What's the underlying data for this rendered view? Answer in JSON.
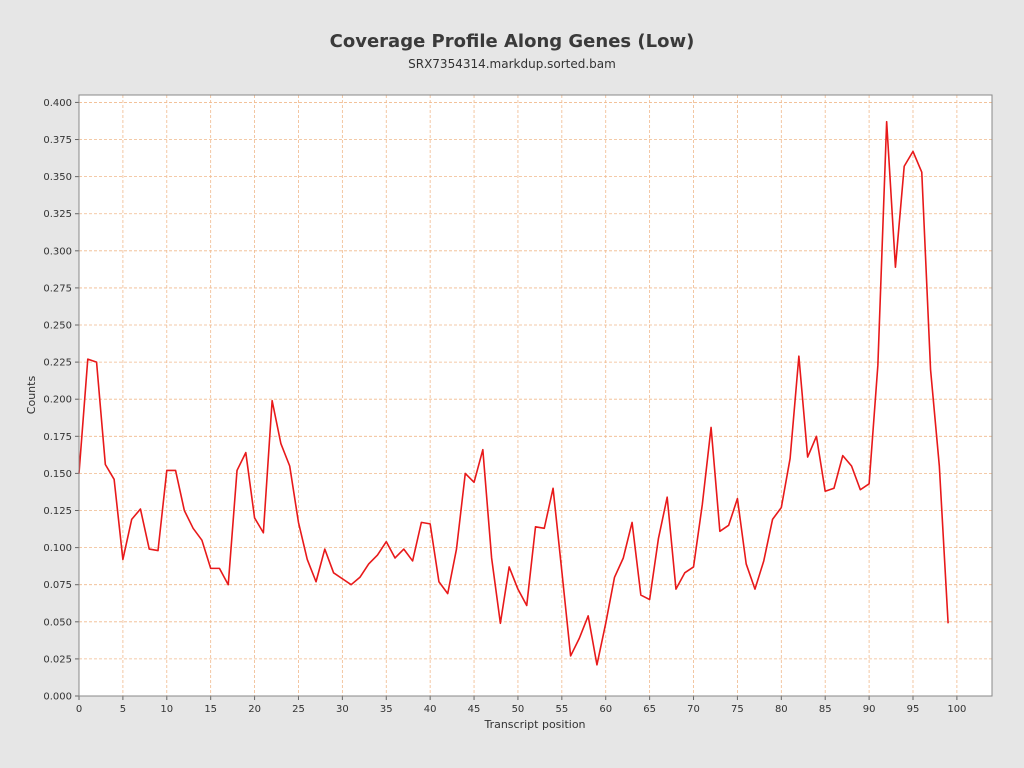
{
  "chart_data": {
    "type": "line",
    "title": "Coverage Profile Along Genes (Low)",
    "subtitle": "SRX7354314.markdup.sorted.bam",
    "xlabel": "Transcript position",
    "ylabel": "Counts",
    "xlim": [
      0,
      104
    ],
    "ylim": [
      0,
      0.405
    ],
    "xticks": [
      0,
      5,
      10,
      15,
      20,
      25,
      30,
      35,
      40,
      45,
      50,
      55,
      60,
      65,
      70,
      75,
      80,
      85,
      90,
      95,
      100
    ],
    "yticks": [
      "0.000",
      "0.025",
      "0.050",
      "0.075",
      "0.100",
      "0.125",
      "0.150",
      "0.175",
      "0.200",
      "0.225",
      "0.250",
      "0.275",
      "0.300",
      "0.325",
      "0.350",
      "0.375",
      "0.400"
    ],
    "grid": true,
    "line_color": "#e8191a",
    "grid_color": "#f0b98c",
    "series": [
      {
        "x": [
          0,
          1,
          2,
          3,
          4,
          5,
          6,
          7,
          8,
          9,
          10,
          11,
          12,
          13,
          14,
          15,
          16,
          17,
          18,
          19,
          20,
          21,
          22,
          23,
          24,
          25,
          26,
          27,
          28,
          29,
          30,
          31,
          32,
          33,
          34,
          35,
          36,
          37,
          38,
          39,
          40,
          41,
          42,
          43,
          44,
          45,
          46,
          47,
          48,
          49,
          50,
          51,
          52,
          53,
          54,
          55,
          56,
          57,
          58,
          59,
          60,
          61,
          62,
          63,
          64,
          65,
          66,
          67,
          68,
          69,
          70,
          71,
          72,
          73,
          74,
          75,
          76,
          77,
          78,
          79,
          80,
          81,
          82,
          83,
          84,
          85,
          86,
          87,
          88,
          89,
          90,
          91,
          92,
          93,
          94,
          95,
          96,
          97,
          98,
          99
        ],
        "y": [
          0.15,
          0.227,
          0.225,
          0.156,
          0.146,
          0.092,
          0.119,
          0.126,
          0.099,
          0.098,
          0.152,
          0.152,
          0.125,
          0.113,
          0.105,
          0.086,
          0.086,
          0.075,
          0.152,
          0.164,
          0.12,
          0.11,
          0.199,
          0.17,
          0.155,
          0.117,
          0.092,
          0.077,
          0.099,
          0.083,
          0.079,
          0.075,
          0.08,
          0.089,
          0.095,
          0.104,
          0.093,
          0.099,
          0.091,
          0.117,
          0.116,
          0.077,
          0.069,
          0.099,
          0.15,
          0.144,
          0.166,
          0.093,
          0.049,
          0.087,
          0.072,
          0.061,
          0.114,
          0.113,
          0.14,
          0.084,
          0.027,
          0.039,
          0.054,
          0.021,
          0.049,
          0.08,
          0.093,
          0.117,
          0.068,
          0.065,
          0.106,
          0.134,
          0.072,
          0.083,
          0.087,
          0.129,
          0.181,
          0.111,
          0.115,
          0.133,
          0.089,
          0.072,
          0.091,
          0.119,
          0.127,
          0.16,
          0.229,
          0.161,
          0.175,
          0.138,
          0.14,
          0.162,
          0.155,
          0.139,
          0.143,
          0.223,
          0.387,
          0.289,
          0.357,
          0.367,
          0.353,
          0.22,
          0.155,
          0.049
        ]
      }
    ]
  }
}
